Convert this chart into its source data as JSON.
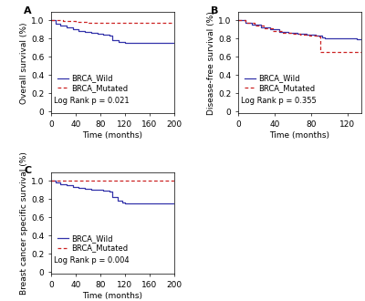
{
  "panel_A": {
    "label": "A",
    "ylabel": "Overall survival (%)",
    "xlabel": "Time (months)",
    "xlim": [
      0,
      200
    ],
    "ylim": [
      -0.02,
      1.09
    ],
    "xticks": [
      0,
      40,
      80,
      120,
      160,
      200
    ],
    "yticks": [
      0,
      0.2,
      0.4,
      0.6,
      0.8,
      1.0
    ],
    "yticklabels": [
      "0",
      "0.2",
      "0.4",
      "0.6",
      "0.8",
      "1.0"
    ],
    "log_rank": "Log Rank p = 0.021",
    "wild": {
      "x": [
        0,
        8,
        15,
        25,
        35,
        45,
        55,
        65,
        75,
        85,
        95,
        100,
        110,
        120,
        125,
        200
      ],
      "y": [
        1.0,
        0.96,
        0.94,
        0.92,
        0.9,
        0.88,
        0.87,
        0.86,
        0.85,
        0.84,
        0.83,
        0.78,
        0.76,
        0.75,
        0.75,
        0.75
      ],
      "color": "#3333aa"
    },
    "mutated": {
      "x": [
        0,
        20,
        40,
        60,
        80,
        100,
        120,
        200
      ],
      "y": [
        1.0,
        0.99,
        0.98,
        0.975,
        0.97,
        0.97,
        0.97,
        0.97
      ],
      "color": "#cc2222"
    }
  },
  "panel_B": {
    "label": "B",
    "ylabel": "Disease-free survival (%)",
    "xlabel": "Time (months)",
    "xlim": [
      0,
      135
    ],
    "ylim": [
      -0.02,
      1.09
    ],
    "xticks": [
      0,
      40,
      80,
      120
    ],
    "yticks": [
      0,
      0.2,
      0.4,
      0.6,
      0.8,
      1.0
    ],
    "yticklabels": [
      "0",
      "0.2",
      "0.4",
      "0.6",
      "0.8",
      "1.0"
    ],
    "log_rank": "Log Rank p = 0.355",
    "wild": {
      "x": [
        0,
        8,
        15,
        25,
        35,
        45,
        55,
        65,
        75,
        85,
        92,
        95,
        100,
        120,
        130,
        135
      ],
      "y": [
        1.0,
        0.97,
        0.95,
        0.92,
        0.9,
        0.87,
        0.86,
        0.85,
        0.84,
        0.83,
        0.81,
        0.8,
        0.8,
        0.8,
        0.79,
        0.79
      ],
      "color": "#3333aa"
    },
    "mutated": {
      "x": [
        0,
        8,
        18,
        28,
        38,
        48,
        58,
        68,
        78,
        86,
        88,
        90,
        130,
        135
      ],
      "y": [
        1.0,
        0.97,
        0.94,
        0.91,
        0.88,
        0.86,
        0.85,
        0.84,
        0.83,
        0.83,
        0.82,
        0.65,
        0.65,
        0.65
      ],
      "color": "#cc2222"
    }
  },
  "panel_C": {
    "label": "C",
    "ylabel": "Breast cancer specific survival (%)",
    "xlabel": "Time (months)",
    "xlim": [
      0,
      200
    ],
    "ylim": [
      -0.02,
      1.09
    ],
    "xticks": [
      0,
      40,
      80,
      120,
      160,
      200
    ],
    "yticks": [
      0,
      0.2,
      0.4,
      0.6,
      0.8,
      1.0
    ],
    "yticklabels": [
      "0",
      "0.2",
      "0.4",
      "0.6",
      "0.8",
      "1.0"
    ],
    "log_rank": "Log Rank p = 0.004",
    "wild": {
      "x": [
        0,
        8,
        15,
        25,
        35,
        45,
        55,
        65,
        75,
        85,
        95,
        100,
        108,
        115,
        120,
        125,
        200
      ],
      "y": [
        1.0,
        0.98,
        0.96,
        0.95,
        0.93,
        0.92,
        0.91,
        0.9,
        0.9,
        0.89,
        0.88,
        0.82,
        0.78,
        0.76,
        0.755,
        0.75,
        0.75
      ],
      "color": "#3333aa"
    },
    "mutated": {
      "x": [
        0,
        10,
        30,
        50,
        80,
        120,
        200
      ],
      "y": [
        1.0,
        1.0,
        1.0,
        1.0,
        1.0,
        1.0,
        1.0
      ],
      "color": "#cc2222"
    }
  },
  "legend_labels": [
    "BRCA_Wild",
    "BRCA_Mutated"
  ],
  "wild_color": "#3333aa",
  "mutated_color": "#cc2222",
  "bg_color": "#ffffff",
  "fontsize": 6.5,
  "label_fontsize": 8
}
